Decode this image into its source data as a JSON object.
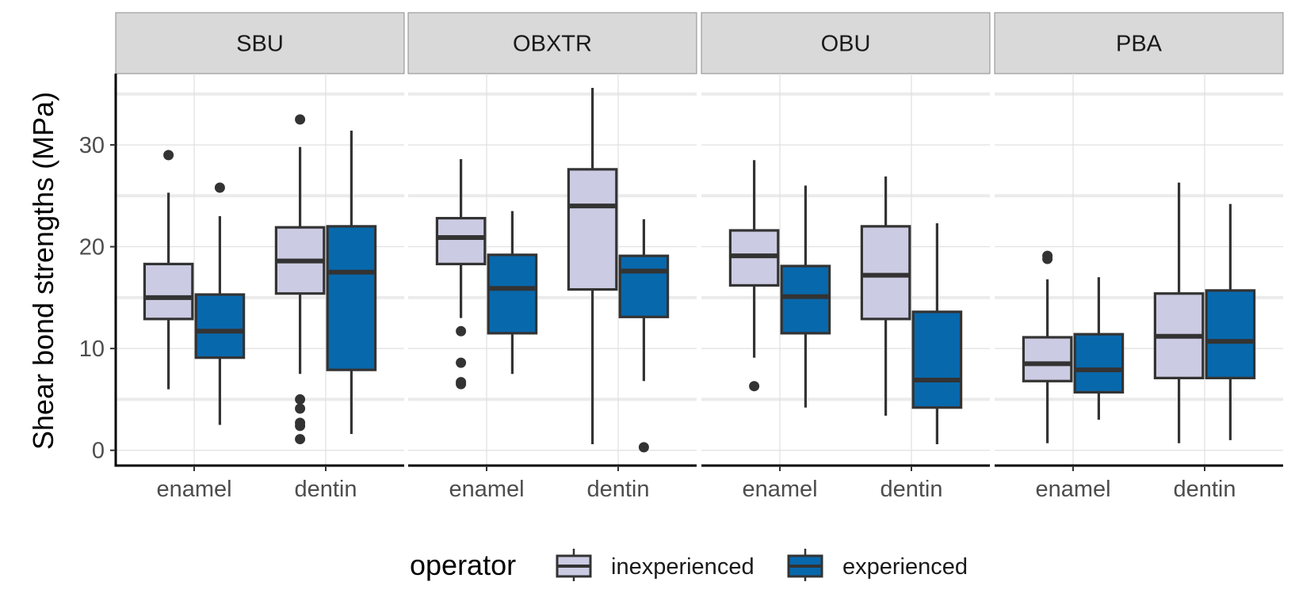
{
  "chart_data": {
    "type": "boxplot",
    "ylabel": "Shear bond strengths (MPa)",
    "ylim": [
      -1.5,
      37
    ],
    "y_ticks": [
      0,
      10,
      20,
      30
    ],
    "panels": [
      "SBU",
      "OBXTR",
      "OBU",
      "PBA"
    ],
    "categories": [
      "enamel",
      "dentin"
    ],
    "legend": {
      "title": "operator",
      "position": "bottom",
      "entries": [
        {
          "name": "inexperienced",
          "color": "#cbcbe3"
        },
        {
          "name": "experienced",
          "color": "#0868ac"
        }
      ]
    },
    "outline_color": "#333333",
    "series": [
      {
        "panel": "SBU",
        "boxes": [
          {
            "category": "enamel",
            "operator": "inexperienced",
            "whisker_low": 6.0,
            "q1": 12.9,
            "median": 15.0,
            "q3": 18.3,
            "whisker_high": 25.3,
            "outliers": [
              29.0
            ]
          },
          {
            "category": "enamel",
            "operator": "experienced",
            "whisker_low": 2.5,
            "q1": 9.1,
            "median": 11.7,
            "q3": 15.3,
            "whisker_high": 23.0,
            "outliers": [
              25.8
            ]
          },
          {
            "category": "dentin",
            "operator": "inexperienced",
            "whisker_low": 7.5,
            "q1": 15.4,
            "median": 18.6,
            "q3": 21.9,
            "whisker_high": 29.8,
            "outliers": [
              32.5,
              5.0,
              4.1,
              2.7,
              2.4,
              1.1
            ]
          },
          {
            "category": "dentin",
            "operator": "experienced",
            "whisker_low": 1.6,
            "q1": 7.9,
            "median": 17.5,
            "q3": 22.0,
            "whisker_high": 31.4,
            "outliers": []
          }
        ]
      },
      {
        "panel": "OBXTR",
        "boxes": [
          {
            "category": "enamel",
            "operator": "inexperienced",
            "whisker_low": 13.0,
            "q1": 18.3,
            "median": 20.9,
            "q3": 22.8,
            "whisker_high": 28.6,
            "outliers": [
              11.7,
              8.6,
              6.7,
              6.5
            ]
          },
          {
            "category": "enamel",
            "operator": "experienced",
            "whisker_low": 7.5,
            "q1": 11.5,
            "median": 15.9,
            "q3": 19.2,
            "whisker_high": 23.5,
            "outliers": []
          },
          {
            "category": "dentin",
            "operator": "inexperienced",
            "whisker_low": 0.6,
            "q1": 15.8,
            "median": 24.0,
            "q3": 27.6,
            "whisker_high": 35.6,
            "outliers": []
          },
          {
            "category": "dentin",
            "operator": "experienced",
            "whisker_low": 6.8,
            "q1": 13.1,
            "median": 17.6,
            "q3": 19.1,
            "whisker_high": 22.7,
            "outliers": [
              0.3
            ]
          }
        ]
      },
      {
        "panel": "OBU",
        "boxes": [
          {
            "category": "enamel",
            "operator": "inexperienced",
            "whisker_low": 9.1,
            "q1": 16.2,
            "median": 19.1,
            "q3": 21.6,
            "whisker_high": 28.5,
            "outliers": [
              6.3
            ]
          },
          {
            "category": "enamel",
            "operator": "experienced",
            "whisker_low": 4.2,
            "q1": 11.5,
            "median": 15.1,
            "q3": 18.1,
            "whisker_high": 26.0,
            "outliers": []
          },
          {
            "category": "dentin",
            "operator": "inexperienced",
            "whisker_low": 3.4,
            "q1": 12.9,
            "median": 17.2,
            "q3": 22.0,
            "whisker_high": 26.9,
            "outliers": []
          },
          {
            "category": "dentin",
            "operator": "experienced",
            "whisker_low": 0.6,
            "q1": 4.2,
            "median": 6.9,
            "q3": 13.6,
            "whisker_high": 22.3,
            "outliers": []
          }
        ]
      },
      {
        "panel": "PBA",
        "boxes": [
          {
            "category": "enamel",
            "operator": "inexperienced",
            "whisker_low": 0.7,
            "q1": 6.8,
            "median": 8.5,
            "q3": 11.1,
            "whisker_high": 16.8,
            "outliers": [
              19.1,
              18.8
            ]
          },
          {
            "category": "enamel",
            "operator": "experienced",
            "whisker_low": 3.0,
            "q1": 5.7,
            "median": 7.9,
            "q3": 11.4,
            "whisker_high": 17.0,
            "outliers": []
          },
          {
            "category": "dentin",
            "operator": "inexperienced",
            "whisker_low": 0.7,
            "q1": 7.1,
            "median": 11.2,
            "q3": 15.4,
            "whisker_high": 26.3,
            "outliers": []
          },
          {
            "category": "dentin",
            "operator": "experienced",
            "whisker_low": 1.0,
            "q1": 7.1,
            "median": 10.7,
            "q3": 15.7,
            "whisker_high": 24.2,
            "outliers": []
          }
        ]
      }
    ]
  }
}
